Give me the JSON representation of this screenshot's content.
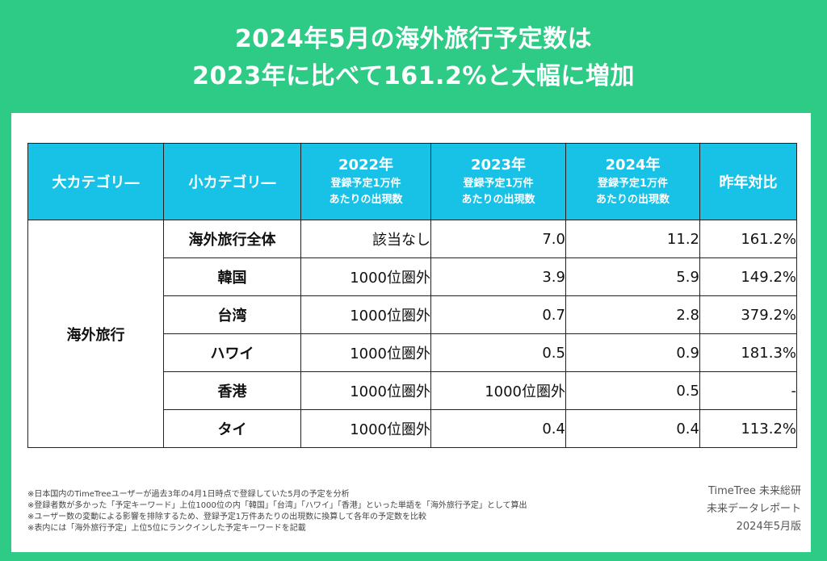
{
  "title": {
    "line1": "2024年5月の海外旅行予定数は",
    "line2": "2023年に比べて161.2%と大幅に増加"
  },
  "table": {
    "headers": {
      "major_category": "大カテゴリ―",
      "minor_category": "小カテゴリ―",
      "year_2022": "2022年",
      "year_2023": "2023年",
      "year_2024": "2024年",
      "sub_line1": "登録予定1万件",
      "sub_line2": "あたりの出現数",
      "yoy": "昨年対比"
    },
    "major_label": "海外旅行",
    "rows": [
      {
        "minor": "海外旅行全体",
        "y2022": "該当なし",
        "y2023": "7.0",
        "y2024": "11.2",
        "yoy": "161.2%"
      },
      {
        "minor": "韓国",
        "y2022": "1000位圏外",
        "y2023": "3.9",
        "y2024": "5.9",
        "yoy": "149.2%"
      },
      {
        "minor": "台湾",
        "y2022": "1000位圏外",
        "y2023": "0.7",
        "y2024": "2.8",
        "yoy": "379.2%"
      },
      {
        "minor": "ハワイ",
        "y2022": "1000位圏外",
        "y2023": "0.5",
        "y2024": "0.9",
        "yoy": "181.3%"
      },
      {
        "minor": "香港",
        "y2022": "1000位圏外",
        "y2023": "1000位圏外",
        "y2024": "0.5",
        "yoy": "-"
      },
      {
        "minor": "タイ",
        "y2022": "1000位圏外",
        "y2023": "0.4",
        "y2024": "0.4",
        "yoy": "113.2%"
      }
    ]
  },
  "notes": [
    "※日本国内のTimeTreeユーザーが過去3年の4月1日時点で登録していた5月の予定を分析",
    "※登録者数が多かった「予定キーワード」上位1000位の内「韓国」「台湾」「ハワイ」「香港」といった単語を「海外旅行予定」として算出",
    "※ユーザー数の変動による影響を排除するため、登録予定1万件あたりの出現数に換算して各年の予定数を比較",
    "※表内には「海外旅行予定」上位5位にランクインした予定キーワードを記載"
  ],
  "credit": {
    "line1": "TimeTree 未来総研",
    "line2": "未来データレポート",
    "line3": "2024年5月版"
  },
  "colors": {
    "background": "#2ecb87",
    "header": "#18c1e6",
    "card": "#ffffff"
  }
}
